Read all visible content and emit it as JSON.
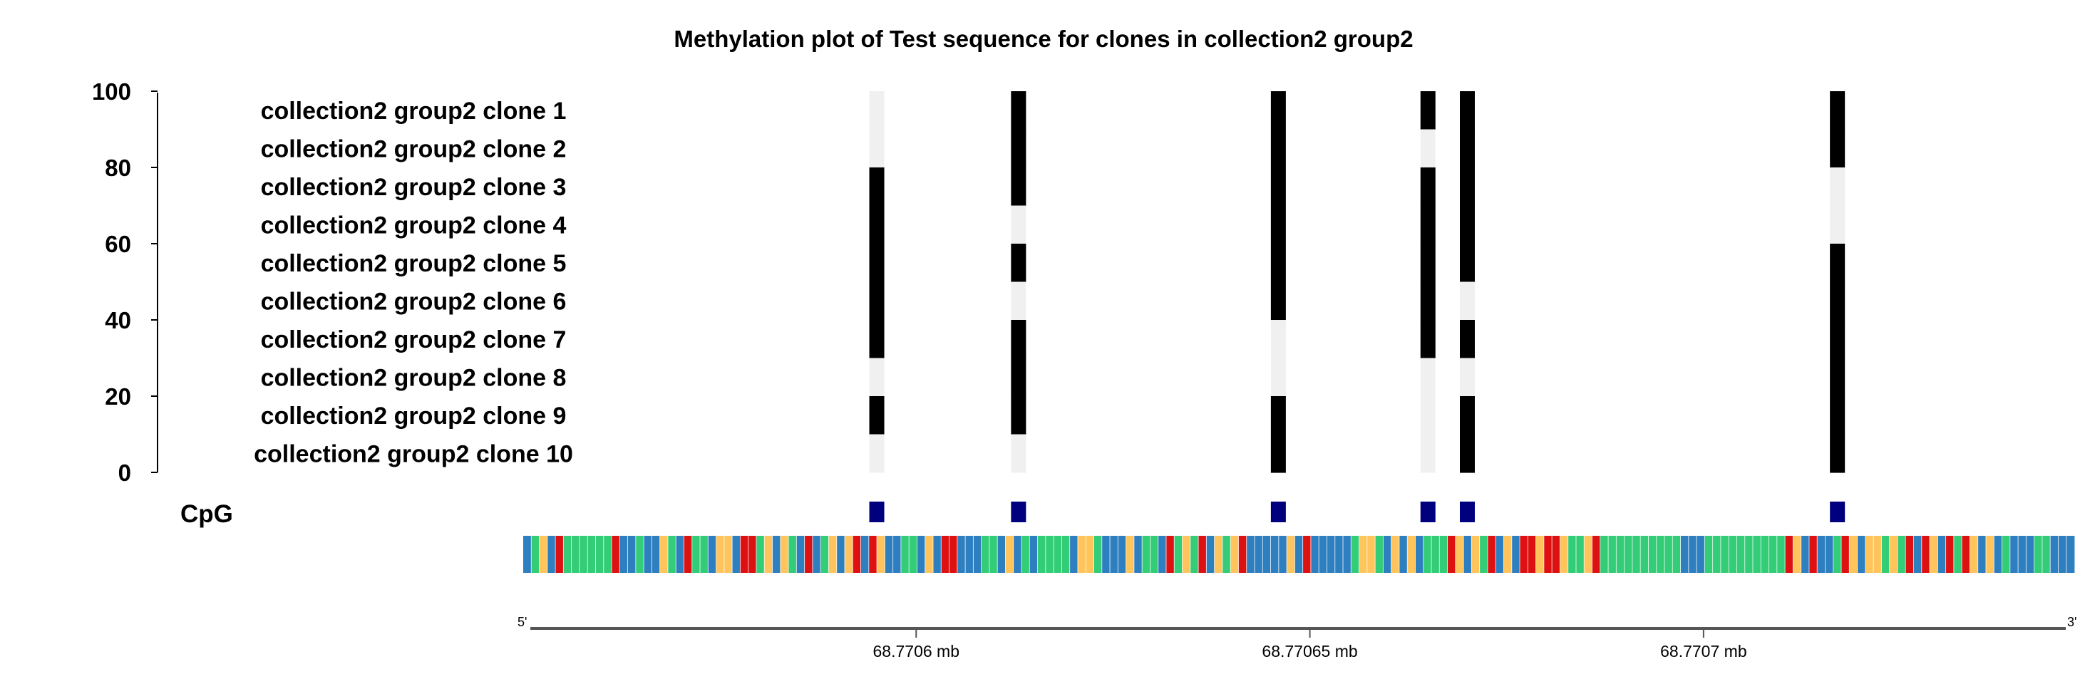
{
  "chart_data": {
    "type": "heatmap",
    "title": "Methylation plot of Test sequence for clones in collection2 group2",
    "y_axis": {
      "ticks": [
        0,
        20,
        40,
        60,
        80,
        100
      ],
      "range": [
        0,
        100
      ]
    },
    "clones": [
      "collection2 group2 clone 1",
      "collection2 group2 clone 2",
      "collection2 group2 clone 3",
      "collection2 group2 clone 4",
      "collection2 group2 clone 5",
      "collection2 group2 clone 6",
      "collection2 group2 clone 7",
      "collection2 group2 clone 8",
      "collection2 group2 clone 9",
      "collection2 group2 clone 10"
    ],
    "cpg_label": "CpG",
    "cpg_sites": [
      {
        "position_mb": 68.770595,
        "methylated": [
          0,
          0,
          1,
          1,
          1,
          1,
          1,
          0,
          1,
          0
        ]
      },
      {
        "position_mb": 68.770613,
        "methylated": [
          1,
          1,
          1,
          0,
          1,
          0,
          1,
          1,
          1,
          0
        ]
      },
      {
        "position_mb": 68.770646,
        "methylated": [
          1,
          1,
          1,
          1,
          1,
          1,
          0,
          0,
          1,
          1
        ]
      },
      {
        "position_mb": 68.770665,
        "methylated": [
          1,
          0,
          1,
          1,
          1,
          1,
          1,
          0,
          0,
          0
        ]
      },
      {
        "position_mb": 68.77067,
        "methylated": [
          1,
          1,
          1,
          1,
          1,
          0,
          1,
          0,
          1,
          1
        ]
      },
      {
        "position_mb": 68.770717,
        "methylated": [
          1,
          1,
          0,
          0,
          1,
          1,
          1,
          1,
          1,
          1
        ]
      }
    ],
    "x_axis": {
      "range_mb": [
        68.770551,
        68.770746
      ],
      "ticks": [
        {
          "value": 68.7706,
          "label": "68.7706 mb"
        },
        {
          "value": 68.77065,
          "label": "68.77065 mb"
        },
        {
          "value": 68.7707,
          "label": "68.7707 mb"
        }
      ],
      "start_label": "5'",
      "end_label": "3'"
    },
    "colors": {
      "methylated": "#000000",
      "unmethylated": "#f0f0f0",
      "cpg_marker": "#00007f",
      "base_A": "#33cc77",
      "base_C": "#2e7fc0",
      "base_G": "#ffc55c",
      "base_T": "#dd1111"
    },
    "sequence_track": {
      "bases": "CAGCTAAAAAATCCACCGACTAACGGCTTAGCGACTCAGCGTCTGCCAACGCTTCCCAACGCACAAAACGGACCCGCAACTAGATCGAGTCCCCCGCTCCCCCAGGACGCGCAAATGCGATCGCTTGTTGAAGTAAAAAAAAAACCCAAAAAAAAAATGCTCCATGCGGAGATCTGCTATGCGCACCCAACCC"
    }
  }
}
